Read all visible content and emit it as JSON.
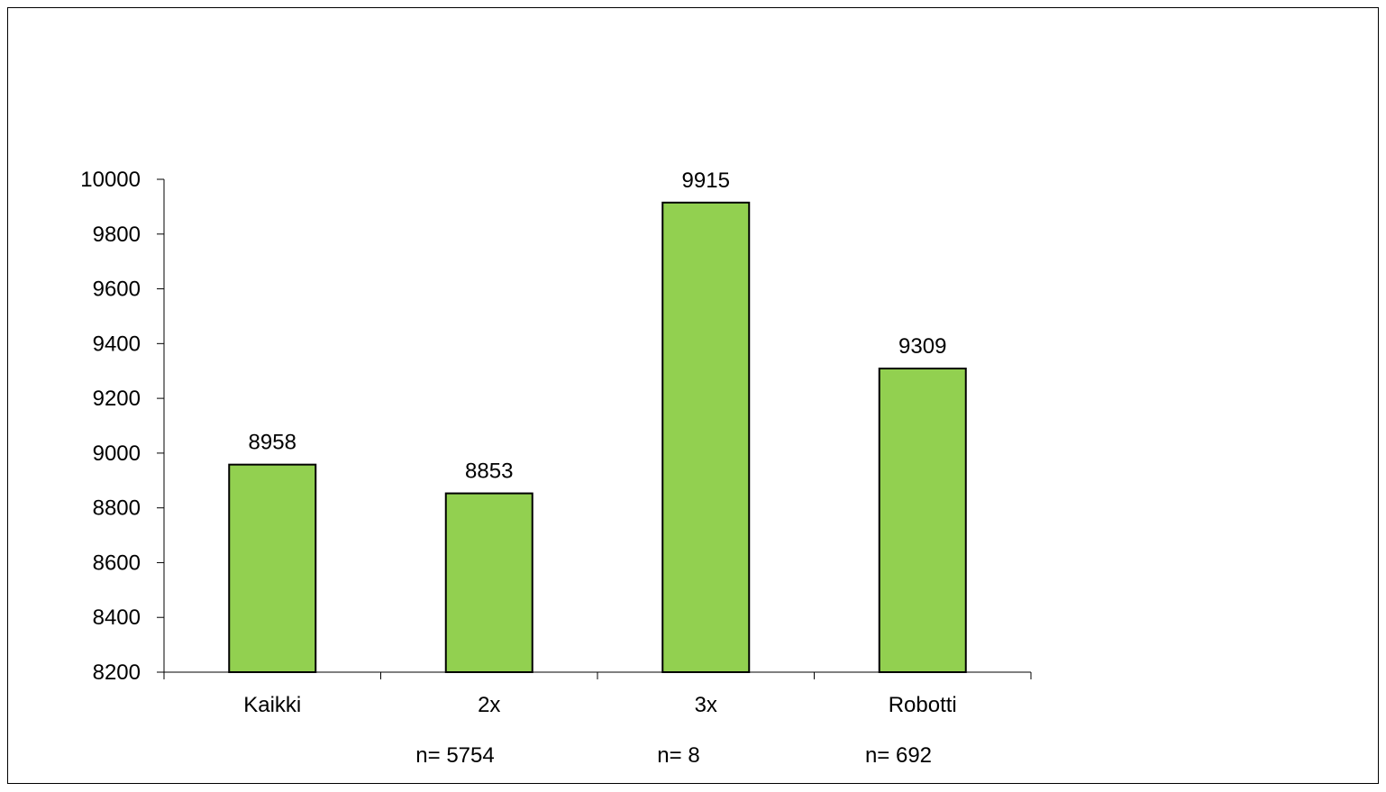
{
  "chart_data": {
    "type": "bar",
    "title": "",
    "xlabel": "",
    "ylabel": "",
    "categories": [
      "Kaikki",
      "2x",
      "3x",
      "Robotti"
    ],
    "values": [
      8958,
      8853,
      9915,
      9309
    ],
    "data_labels": [
      "8958",
      "8853",
      "9915",
      "9309"
    ],
    "ylim": [
      8200,
      10000
    ],
    "yticks": [
      8200,
      8400,
      8600,
      8800,
      9000,
      9200,
      9400,
      9600,
      9800,
      10000
    ],
    "ytick_labels": [
      "8200",
      "8400",
      "8600",
      "8800",
      "9000",
      "9200",
      "9400",
      "9600",
      "9800",
      "10000"
    ],
    "sample_sizes": [
      "n= 5754",
      "n= 8",
      "n= 692"
    ],
    "grid": false,
    "legend": "none",
    "bar_color": "#92d050",
    "bar_edge_color": "#000000"
  }
}
